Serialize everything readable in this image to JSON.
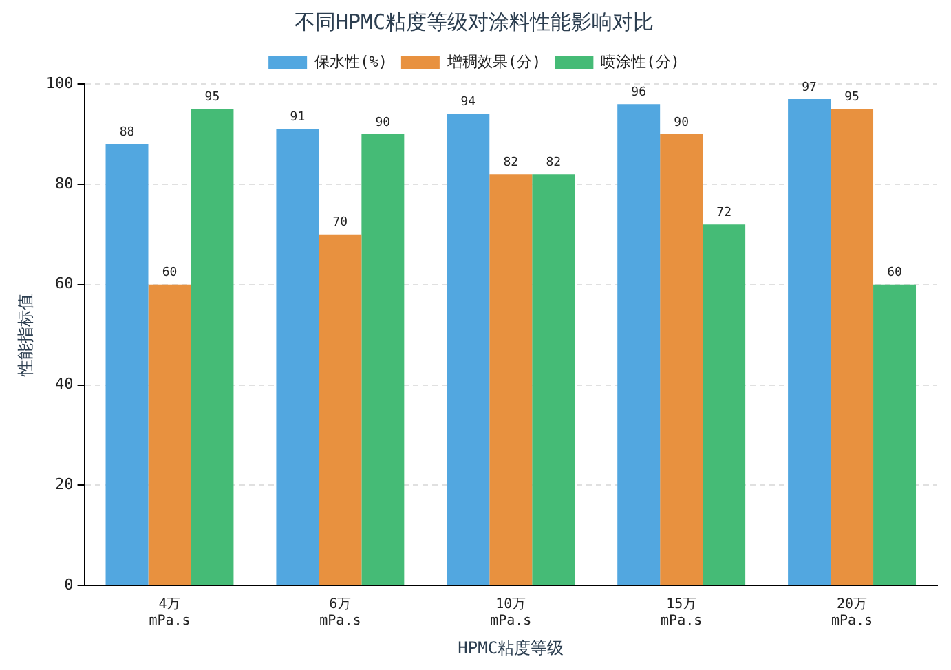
{
  "chart_data": {
    "type": "bar",
    "title": "不同HPMC粘度等级对涂料性能影响对比",
    "xlabel": "HPMC粘度等级",
    "ylabel": "性能指标值",
    "categories": [
      "4万\nmPa.s",
      "6万\nmPa.s",
      "10万\nmPa.s",
      "15万\nmPa.s",
      "20万\nmPa.s"
    ],
    "series": [
      {
        "name": "保水性(%)",
        "color": "#52a7e0",
        "values": [
          88,
          91,
          94,
          96,
          97
        ]
      },
      {
        "name": "增稠效果(分)",
        "color": "#e8913f",
        "values": [
          60,
          70,
          82,
          90,
          95
        ]
      },
      {
        "name": "喷涂性(分)",
        "color": "#45bb76",
        "values": [
          95,
          90,
          82,
          72,
          60
        ]
      }
    ],
    "ylim": [
      0,
      100
    ],
    "yticks": [
      0,
      20,
      40,
      60,
      80,
      100
    ],
    "grid": "y",
    "legend": "top",
    "data_labels": true
  }
}
